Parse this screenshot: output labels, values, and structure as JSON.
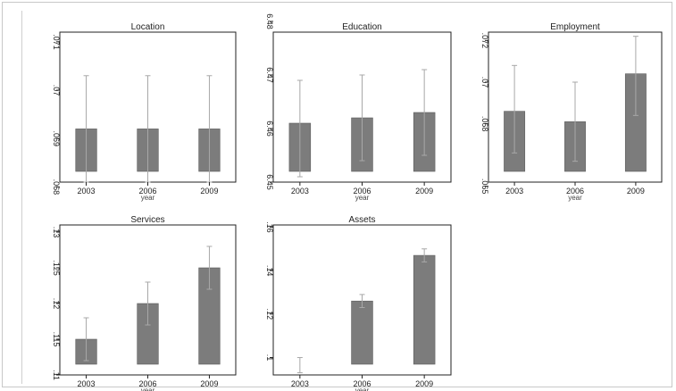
{
  "chart_data": [
    {
      "type": "bar",
      "title": "Location",
      "xlabel": "year",
      "categories": [
        "2003",
        "2006",
        "2009"
      ],
      "values": [
        0.0692,
        0.0692,
        0.0692
      ],
      "error_high": [
        0.0703,
        0.0703,
        0.0703
      ],
      "error_low": [
        0.0681,
        0.0681,
        0.0681
      ],
      "ylim": [
        0.0681,
        0.0712
      ],
      "yticks": [
        0.068,
        0.069,
        0.07,
        0.071
      ],
      "ytick_labels": [
        ".068",
        ".069",
        ".07",
        ".071"
      ]
    },
    {
      "type": "bar",
      "title": "Education",
      "xlabel": "year",
      "categories": [
        "2003",
        "2006",
        "2009"
      ],
      "values": [
        6.461,
        6.462,
        6.463
      ],
      "error_high": [
        6.469,
        6.47,
        6.471
      ],
      "error_low": [
        6.451,
        6.454,
        6.455
      ],
      "ylim": [
        6.45,
        6.478
      ],
      "yticks": [
        6.45,
        6.46,
        6.47,
        6.48
      ],
      "ytick_labels": [
        "6.45",
        "6.46",
        "6.47",
        "6.48"
      ]
    },
    {
      "type": "bar",
      "title": "Employment",
      "xlabel": "year",
      "categories": [
        "2003",
        "2006",
        "2009"
      ],
      "values": [
        0.0686,
        0.0681,
        0.0704
      ],
      "error_high": [
        0.0708,
        0.07,
        0.0722
      ],
      "error_low": [
        0.0666,
        0.0662,
        0.0684
      ],
      "ylim": [
        0.0652,
        0.0724
      ],
      "yticks": [
        0.065,
        0.068,
        0.07,
        0.072
      ],
      "ytick_labels": [
        ".065",
        ".068",
        ".07",
        ".072"
      ]
    },
    {
      "type": "bar",
      "title": "Services",
      "xlabel": "year",
      "categories": [
        "2003",
        "2006",
        "2009"
      ],
      "values": [
        0.115,
        0.12,
        0.125
      ],
      "error_high": [
        0.118,
        0.123,
        0.128
      ],
      "error_low": [
        0.112,
        0.117,
        0.122
      ],
      "ylim": [
        0.11,
        0.131
      ],
      "yticks": [
        0.11,
        0.115,
        0.12,
        0.125,
        0.13
      ],
      "ytick_labels": [
        ".11",
        ".115",
        ".12",
        ".125",
        ".13"
      ]
    },
    {
      "type": "bar",
      "title": "Assets",
      "xlabel": "year",
      "categories": [
        "2003",
        "2006",
        "2009"
      ],
      "values": [
        0.096,
        0.126,
        0.147
      ],
      "error_high": [
        0.1,
        0.129,
        0.15
      ],
      "error_low": [
        0.093,
        0.123,
        0.144
      ],
      "ylim": [
        0.092,
        0.161
      ],
      "yticks": [
        0.1,
        0.12,
        0.14,
        0.16
      ],
      "ytick_labels": [
        ".1",
        ".12",
        ".14",
        ".16"
      ]
    }
  ]
}
